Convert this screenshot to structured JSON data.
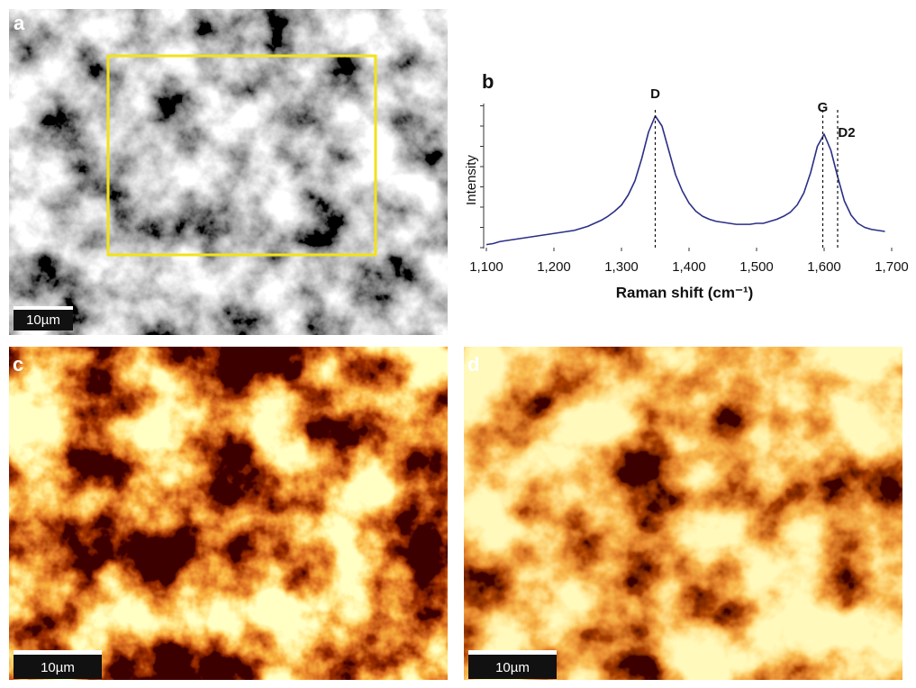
{
  "panels": [
    {
      "label": "a",
      "scale_bar": "10µm"
    },
    {
      "label": "c",
      "scale_bar": "10µm"
    },
    {
      "label": "d",
      "scale_bar": "10µm"
    }
  ],
  "chart_data": {
    "type": "line",
    "panel_label": "b",
    "xlabel": "Raman shift (cm⁻¹)",
    "ylabel": "Intensity",
    "color": "#2b2f86",
    "x": [
      1100,
      1110,
      1120,
      1130,
      1140,
      1150,
      1160,
      1170,
      1180,
      1190,
      1200,
      1210,
      1220,
      1230,
      1240,
      1250,
      1260,
      1270,
      1280,
      1290,
      1300,
      1310,
      1320,
      1330,
      1340,
      1350,
      1360,
      1370,
      1380,
      1390,
      1400,
      1410,
      1420,
      1430,
      1440,
      1450,
      1460,
      1470,
      1480,
      1490,
      1500,
      1510,
      1520,
      1530,
      1540,
      1550,
      1560,
      1570,
      1580,
      1590,
      1600,
      1610,
      1620,
      1630,
      1640,
      1650,
      1660,
      1670,
      1680,
      1690
    ],
    "values": [
      0.15,
      0.2,
      0.3,
      0.35,
      0.4,
      0.45,
      0.5,
      0.55,
      0.6,
      0.65,
      0.7,
      0.75,
      0.8,
      0.85,
      0.95,
      1.05,
      1.2,
      1.35,
      1.55,
      1.8,
      2.1,
      2.6,
      3.3,
      4.4,
      5.7,
      6.5,
      6.0,
      4.8,
      3.6,
      2.8,
      2.2,
      1.8,
      1.55,
      1.4,
      1.3,
      1.25,
      1.2,
      1.15,
      1.15,
      1.15,
      1.2,
      1.2,
      1.3,
      1.4,
      1.55,
      1.75,
      2.1,
      2.7,
      3.7,
      5.0,
      5.6,
      4.8,
      3.5,
      2.3,
      1.6,
      1.2,
      1.0,
      0.9,
      0.85,
      0.8
    ],
    "annotations": [
      {
        "label": "D",
        "x": 1350
      },
      {
        "label": "G",
        "x": 1598
      },
      {
        "label": "D2",
        "x": 1620
      }
    ],
    "xlim": [
      1100,
      1700
    ],
    "xticks": [
      {
        "value": 1100,
        "label": "1,100"
      },
      {
        "value": 1200,
        "label": "1,200"
      },
      {
        "value": 1300,
        "label": "1,300"
      },
      {
        "value": 1400,
        "label": "1,400"
      },
      {
        "value": 1500,
        "label": "1,500"
      },
      {
        "value": 1600,
        "label": "1,600"
      },
      {
        "value": 1700,
        "label": "1,700"
      }
    ],
    "ylim": [
      0,
      7
    ],
    "yticks": [
      0,
      1,
      2,
      3,
      4,
      5,
      6,
      7
    ]
  }
}
